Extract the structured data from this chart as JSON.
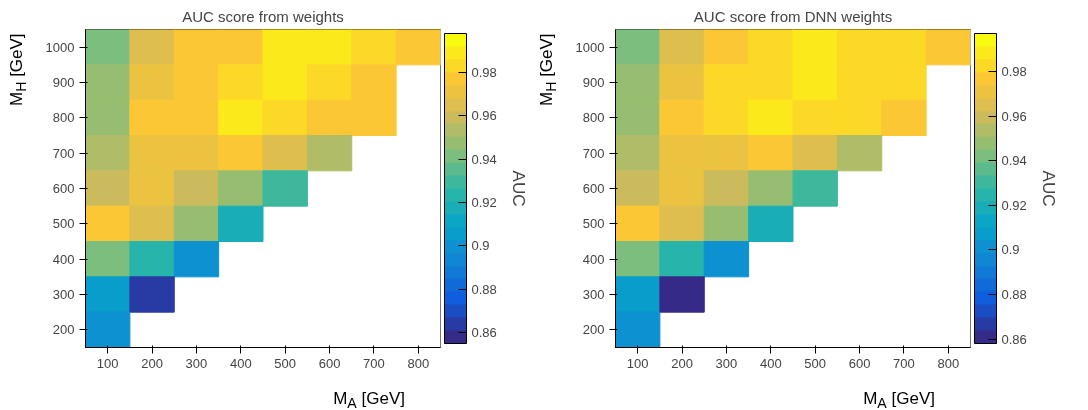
{
  "chart_data": [
    {
      "type": "heatmap",
      "title": "AUC score from weights",
      "xlabel": "M$_{A}$ [GeV]",
      "ylabel": "M$_{H}$ [GeV]",
      "clabel": "AUC",
      "categories": [
        "100",
        "200",
        "300",
        "400",
        "500",
        "600",
        "700",
        "800"
      ],
      "y_categories": [
        "1000",
        "900",
        "800",
        "700",
        "600",
        "500",
        "400",
        "300",
        "200"
      ],
      "cells": [
        [
          0.94,
          0.965,
          0.975,
          0.98,
          0.99,
          0.99,
          0.985,
          0.975
        ],
        [
          0.945,
          0.97,
          0.98,
          0.985,
          0.99,
          0.985,
          0.98,
          null
        ],
        [
          0.95,
          0.975,
          0.98,
          0.99,
          0.985,
          0.98,
          0.975,
          null
        ],
        [
          0.955,
          0.97,
          0.97,
          0.975,
          0.965,
          0.955,
          null,
          null
        ],
        [
          0.96,
          0.97,
          0.96,
          0.945,
          0.93,
          null,
          null,
          null
        ],
        [
          0.975,
          0.965,
          0.95,
          0.92,
          null,
          null,
          null,
          null
        ],
        [
          0.94,
          0.925,
          0.9,
          null,
          null,
          null,
          null,
          null
        ],
        [
          0.905,
          0.865,
          null,
          null,
          null,
          null,
          null,
          null
        ],
        [
          0.9,
          null,
          null,
          null,
          null,
          null,
          null,
          null
        ]
      ],
      "clim": [
        0.855,
        0.998
      ],
      "cticks": [
        0.86,
        0.88,
        0.9,
        0.92,
        0.94,
        0.96,
        0.98
      ]
    },
    {
      "type": "heatmap",
      "title": "AUC score from DNN weights",
      "xlabel": "M$_{A}$ [GeV]",
      "ylabel": "M$_{H}$ [GeV]",
      "clabel": "AUC",
      "categories": [
        "100",
        "200",
        "300",
        "400",
        "500",
        "600",
        "700",
        "800"
      ],
      "y_categories": [
        "1000",
        "900",
        "800",
        "700",
        "600",
        "500",
        "400",
        "300",
        "200"
      ],
      "cells": [
        [
          0.94,
          0.965,
          0.975,
          0.985,
          0.99,
          0.985,
          0.98,
          0.975
        ],
        [
          0.945,
          0.97,
          0.98,
          0.985,
          0.99,
          0.985,
          0.98,
          null
        ],
        [
          0.95,
          0.975,
          0.98,
          0.99,
          0.985,
          0.98,
          0.975,
          null
        ],
        [
          0.955,
          0.97,
          0.97,
          0.975,
          0.965,
          0.955,
          null,
          null
        ],
        [
          0.96,
          0.97,
          0.96,
          0.945,
          0.93,
          null,
          null,
          null
        ],
        [
          0.975,
          0.965,
          0.95,
          0.92,
          null,
          null,
          null,
          null
        ],
        [
          0.94,
          0.925,
          0.9,
          null,
          null,
          null,
          null,
          null
        ],
        [
          0.905,
          0.862,
          null,
          null,
          null,
          null,
          null,
          null
        ],
        [
          0.9,
          null,
          null,
          null,
          null,
          null,
          null,
          null
        ]
      ],
      "clim": [
        0.858,
        0.997
      ],
      "cticks": [
        0.86,
        0.88,
        0.9,
        0.92,
        0.94,
        0.96,
        0.98
      ]
    }
  ]
}
